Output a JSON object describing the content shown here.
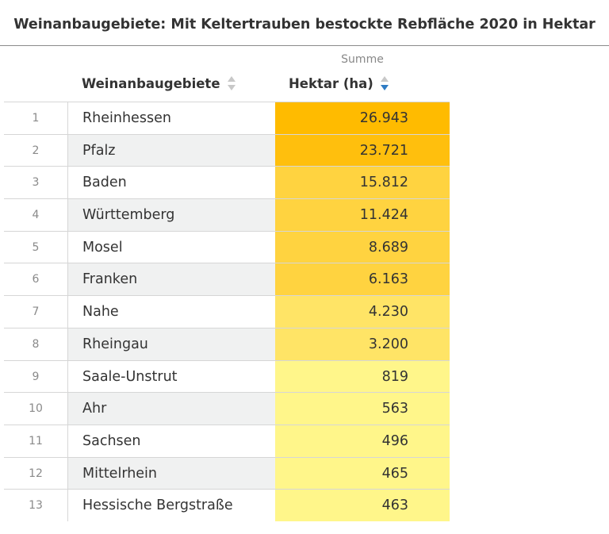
{
  "header": {
    "title": "Weinanbaugebiete: Mit Keltertrauben bestockte Rebfläche 2020 in Hektar"
  },
  "table": {
    "group_label": "Summe",
    "columns": [
      {
        "label": "Weinanbaugebiete",
        "sort_icon": "sort-unsorted-icon"
      },
      {
        "label": "Hektar (ha)",
        "sort_icon": "sort-descending-icon"
      }
    ]
  },
  "colors": {
    "sort_inactive": "#c8c8c8",
    "sort_active": "#2f7cc4",
    "scale_high": "#ffbb00",
    "scale_low": "#fff68a"
  },
  "chart_data": {
    "type": "table",
    "title": "Weinanbaugebiete: Mit Keltertrauben bestockte Rebfläche 2020 in Hektar",
    "columns": [
      "Weinanbaugebiete",
      "Hektar (ha)"
    ],
    "rows": [
      {
        "index": "1",
        "region": "Rheinhessen",
        "value": 26943,
        "display": "26.943",
        "color": "#ffbb00"
      },
      {
        "index": "2",
        "region": "Pfalz",
        "value": 23721,
        "display": "23.721",
        "color": "#ffbf0d"
      },
      {
        "index": "3",
        "region": "Baden",
        "value": 15812,
        "display": "15.812",
        "color": "#ffd340"
      },
      {
        "index": "4",
        "region": "Württemberg",
        "value": 11424,
        "display": "11.424",
        "color": "#ffd340"
      },
      {
        "index": "5",
        "region": "Mosel",
        "value": 8689,
        "display": "8.689",
        "color": "#ffd340"
      },
      {
        "index": "6",
        "region": "Franken",
        "value": 6163,
        "display": "6.163",
        "color": "#ffd340"
      },
      {
        "index": "7",
        "region": "Nahe",
        "value": 4230,
        "display": "4.230",
        "color": "#ffe466"
      },
      {
        "index": "8",
        "region": "Rheingau",
        "value": 3200,
        "display": "3.200",
        "color": "#ffe466"
      },
      {
        "index": "9",
        "region": "Saale-Unstrut",
        "value": 819,
        "display": "819",
        "color": "#fff68a"
      },
      {
        "index": "10",
        "region": "Ahr",
        "value": 563,
        "display": "563",
        "color": "#fff68a"
      },
      {
        "index": "11",
        "region": "Sachsen",
        "value": 496,
        "display": "496",
        "color": "#fff68a"
      },
      {
        "index": "12",
        "region": "Mittelrhein",
        "value": 465,
        "display": "465",
        "color": "#fff68a"
      },
      {
        "index": "13",
        "region": "Hessische Bergstraße",
        "value": 463,
        "display": "463",
        "color": "#fff68a"
      }
    ]
  }
}
